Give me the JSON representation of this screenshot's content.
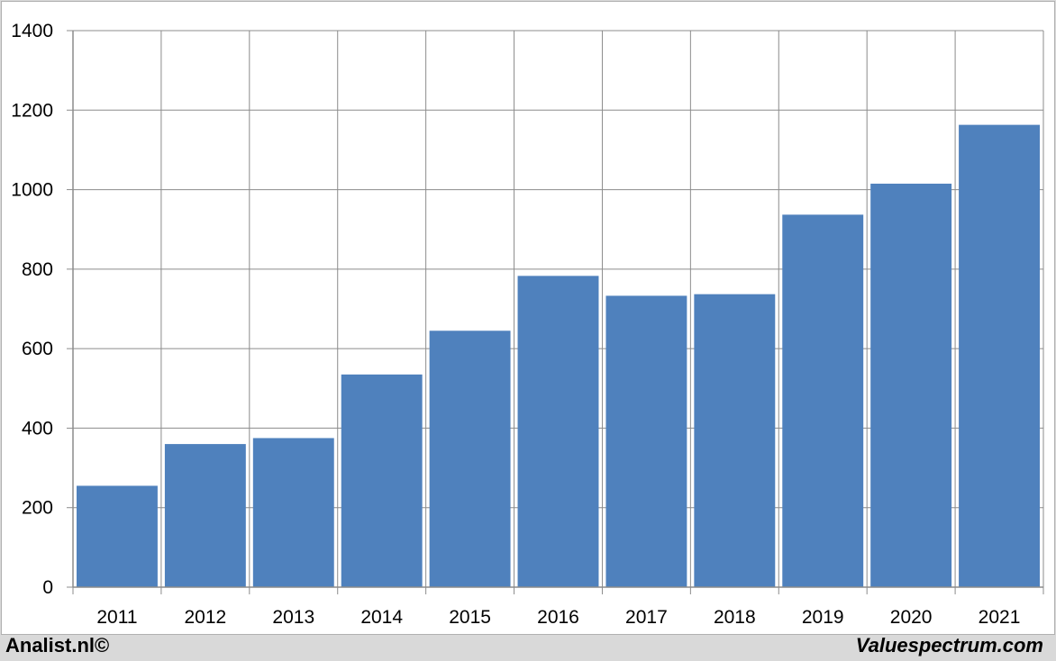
{
  "chart_data": {
    "type": "bar",
    "categories": [
      "2011",
      "2012",
      "2013",
      "2014",
      "2015",
      "2016",
      "2017",
      "2018",
      "2019",
      "2020",
      "2021"
    ],
    "values": [
      255,
      360,
      375,
      535,
      645,
      783,
      733,
      737,
      937,
      1015,
      1163
    ],
    "ylim": [
      0,
      1400
    ],
    "yticks": [
      0,
      200,
      400,
      600,
      800,
      1000,
      1200,
      1400
    ],
    "grid": true,
    "bar_color": "#4f81bd",
    "grid_color": "#8c8c8c"
  },
  "footer": {
    "left": "Analist.nl©",
    "right": "Valuespectrum.com"
  }
}
